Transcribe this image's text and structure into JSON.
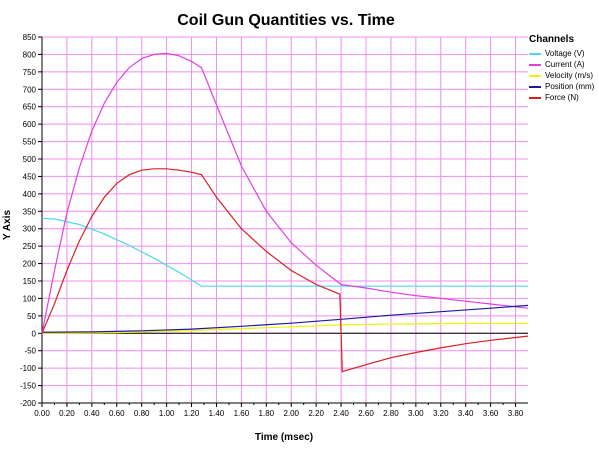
{
  "chart_data": {
    "type": "line",
    "title": "Coil Gun Quantities vs. Time",
    "xlabel": "Time (msec)",
    "ylabel": "Y Axis",
    "xlim": [
      0.0,
      3.9
    ],
    "ylim": [
      -200,
      850
    ],
    "x_ticks": [
      "0.00",
      "0.20",
      "0.40",
      "0.60",
      "0.80",
      "1.00",
      "1.20",
      "1.40",
      "1.60",
      "1.80",
      "2.00",
      "2.20",
      "2.40",
      "2.60",
      "2.80",
      "3.00",
      "3.20",
      "3.40",
      "3.60",
      "3.80"
    ],
    "y_ticks": [
      "850",
      "800",
      "750",
      "700",
      "650",
      "600",
      "550",
      "500",
      "450",
      "400",
      "350",
      "300",
      "250",
      "200",
      "150",
      "100",
      "50",
      "0",
      "-50",
      "-100",
      "-150",
      "-200"
    ],
    "grid": true,
    "legend": {
      "title": "Channels",
      "placement": "right"
    },
    "series": [
      {
        "name": "Voltage (V)",
        "color": "#4dd9e8",
        "x": [
          0.0,
          0.1,
          0.3,
          0.5,
          0.7,
          0.9,
          1.1,
          1.28,
          1.5,
          2.0,
          2.4,
          3.0,
          3.5,
          3.9
        ],
        "y": [
          330,
          328,
          312,
          285,
          252,
          215,
          175,
          135,
          135,
          135,
          135,
          135,
          135,
          135
        ]
      },
      {
        "name": "Current (A)",
        "color": "#e040e0",
        "x": [
          0.0,
          0.1,
          0.2,
          0.3,
          0.4,
          0.5,
          0.6,
          0.7,
          0.8,
          0.9,
          1.0,
          1.1,
          1.2,
          1.28,
          1.4,
          1.6,
          1.8,
          2.0,
          2.2,
          2.4,
          2.6,
          2.8,
          3.0,
          3.2,
          3.4,
          3.6,
          3.8,
          3.9
        ],
        "y": [
          0,
          180,
          345,
          475,
          580,
          660,
          720,
          762,
          788,
          800,
          803,
          796,
          780,
          762,
          655,
          480,
          350,
          260,
          195,
          140,
          130,
          118,
          108,
          100,
          92,
          84,
          76,
          72
        ]
      },
      {
        "name": "Velocity (m/s)",
        "color": "#f2f200",
        "x": [
          0.0,
          0.3,
          0.6,
          0.9,
          1.2,
          1.5,
          1.8,
          2.1,
          2.4,
          2.7,
          3.0,
          3.3,
          3.6,
          3.9
        ],
        "y": [
          0,
          0.5,
          2,
          4.5,
          8,
          12,
          16,
          20,
          24,
          26,
          27,
          28,
          28,
          28
        ]
      },
      {
        "name": "Position (mm)",
        "color": "#1a1aa0",
        "x": [
          0.0,
          0.4,
          0.8,
          1.2,
          1.6,
          2.0,
          2.4,
          2.8,
          3.2,
          3.6,
          3.9
        ],
        "y": [
          3,
          4,
          7,
          12,
          20,
          29,
          40,
          52,
          62,
          72,
          80
        ]
      },
      {
        "name": "Force (N)",
        "color": "#d92020",
        "x": [
          0.0,
          0.1,
          0.2,
          0.3,
          0.4,
          0.5,
          0.6,
          0.7,
          0.8,
          0.9,
          1.0,
          1.1,
          1.2,
          1.28,
          1.4,
          1.6,
          1.8,
          2.0,
          2.2,
          2.39,
          2.4,
          2.41,
          2.6,
          2.8,
          3.0,
          3.2,
          3.4,
          3.6,
          3.8,
          3.9
        ],
        "y": [
          0,
          85,
          180,
          265,
          335,
          390,
          430,
          455,
          468,
          472,
          472,
          468,
          462,
          455,
          390,
          300,
          235,
          180,
          140,
          112,
          0,
          -110,
          -90,
          -70,
          -55,
          -42,
          -30,
          -20,
          -12,
          -8
        ]
      }
    ]
  }
}
